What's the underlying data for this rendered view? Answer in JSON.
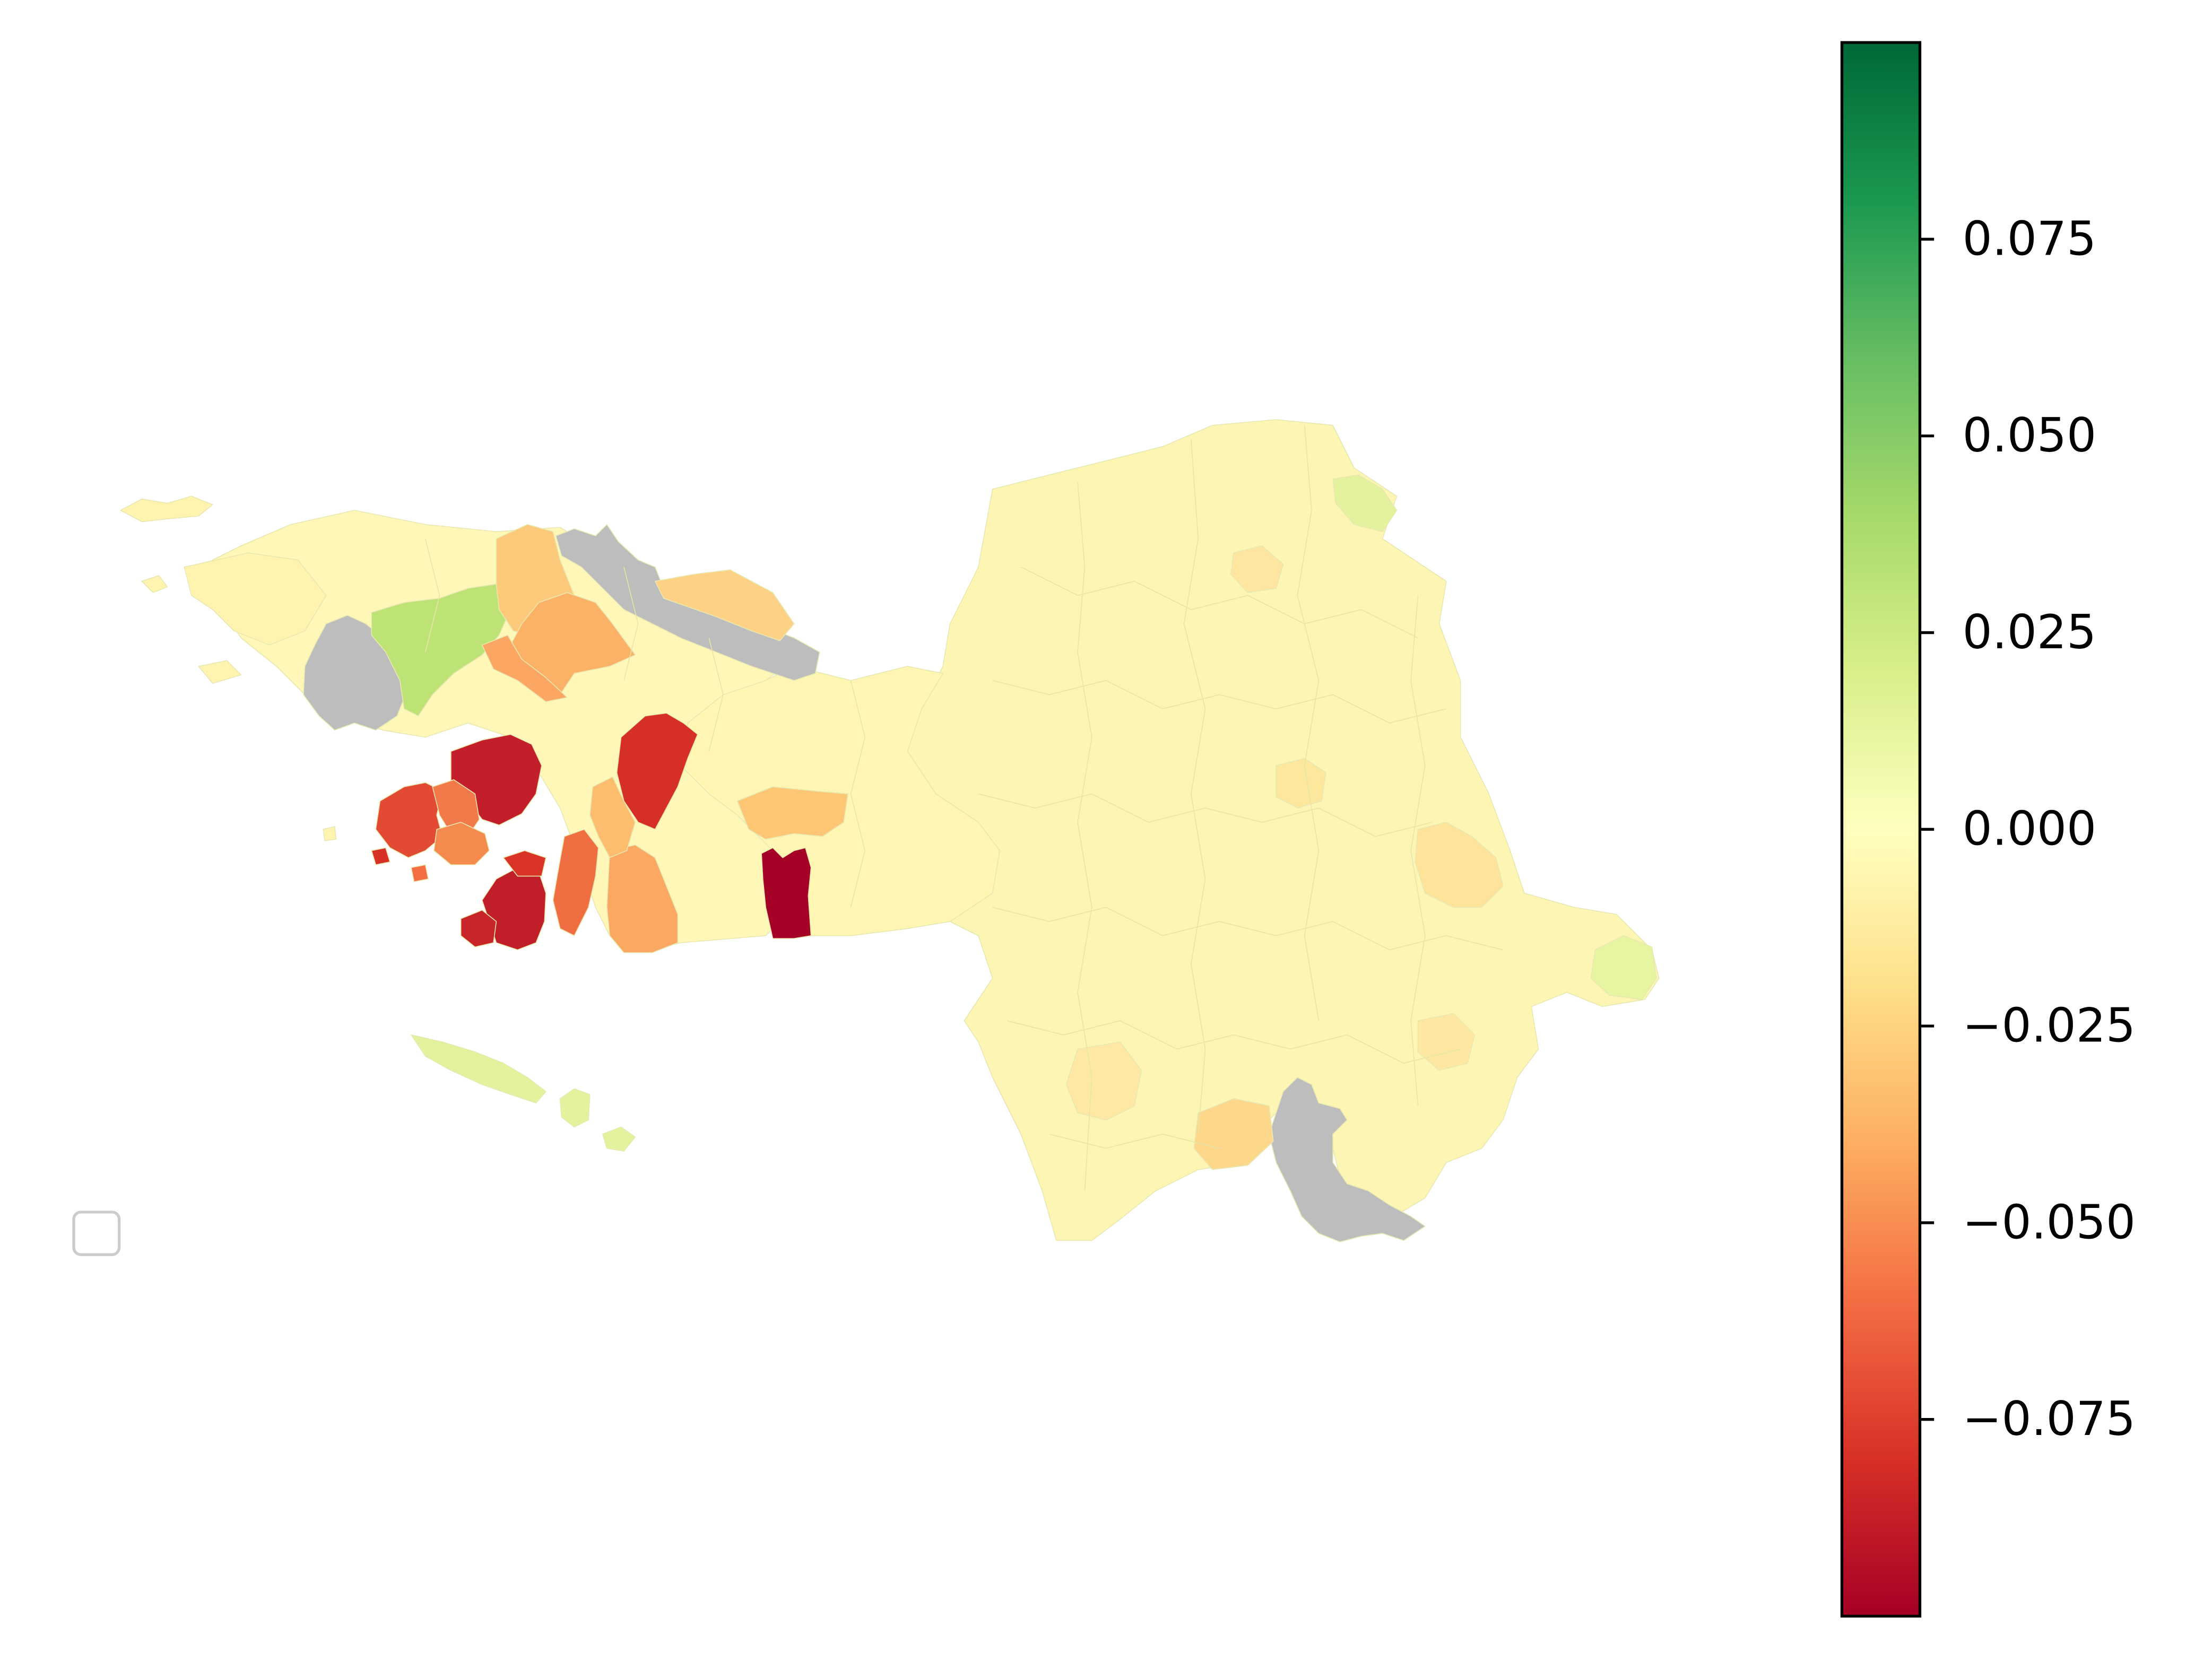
{
  "chart_data": {
    "type": "heatmap",
    "title": "",
    "legend": {
      "placement": "lower-left",
      "entries": []
    },
    "colorbar": {
      "colormap": "RdYlGn",
      "range": [
        -0.1,
        0.1
      ],
      "ticks": [
        {
          "value": 0.075,
          "label": "0.075"
        },
        {
          "value": 0.05,
          "label": "0.050"
        },
        {
          "value": 0.025,
          "label": "0.025"
        },
        {
          "value": 0.0,
          "label": "0.000"
        },
        {
          "value": -0.025,
          "label": "−0.025"
        },
        {
          "value": -0.05,
          "label": "−0.050"
        },
        {
          "value": -0.075,
          "label": "−0.075"
        }
      ]
    },
    "missing_color": "#bdbdbd",
    "regions_shaded": "many small administrative regions colored by value; most near 0.000, several western regions strongly negative, one region about +0.04"
  }
}
